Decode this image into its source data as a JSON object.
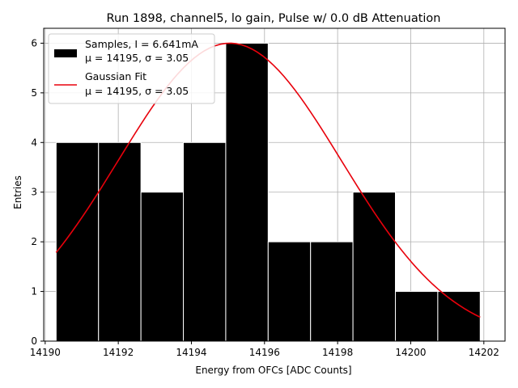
{
  "chart_data": {
    "type": "bar",
    "title": "Run 1898, channel5, lo gain, Pulse w/ 0.0 dB Attenuation",
    "xlabel": "Energy from OFCs [ADC Counts]",
    "ylabel": "Entries",
    "xlim": [
      14189.96,
      14202.58
    ],
    "ylim": [
      0,
      6.3
    ],
    "xticks": [
      14190,
      14192,
      14194,
      14196,
      14198,
      14200,
      14202
    ],
    "yticks": [
      0,
      1,
      2,
      3,
      4,
      5,
      6
    ],
    "grid": true,
    "legend_position": "top-left",
    "histogram": {
      "name": "Samples, I = 6.641mA",
      "name_line2": "μ = 14195, σ = 3.05",
      "color": "#000000",
      "edgecolor": "#ffffff",
      "bins": [
        {
          "x0": 14190.3,
          "x1": 14191.46,
          "count": 4
        },
        {
          "x0": 14191.46,
          "x1": 14192.62,
          "count": 4
        },
        {
          "x0": 14192.62,
          "x1": 14193.78,
          "count": 3
        },
        {
          "x0": 14193.78,
          "x1": 14194.94,
          "count": 4
        },
        {
          "x0": 14194.94,
          "x1": 14196.1,
          "count": 6
        },
        {
          "x0": 14196.1,
          "x1": 14197.26,
          "count": 2
        },
        {
          "x0": 14197.26,
          "x1": 14198.42,
          "count": 2
        },
        {
          "x0": 14198.42,
          "x1": 14199.58,
          "count": 3
        },
        {
          "x0": 14199.58,
          "x1": 14200.74,
          "count": 1
        },
        {
          "x0": 14200.74,
          "x1": 14201.9,
          "count": 1
        }
      ]
    },
    "fit": {
      "name": "Gaussian Fit",
      "name_line2": "μ = 14195, σ = 3.05",
      "color": "#e8000b",
      "mu": 14195.05,
      "sigma": 3.05,
      "amplitude": 6.0,
      "x_range": [
        14190.3,
        14201.9
      ]
    }
  }
}
